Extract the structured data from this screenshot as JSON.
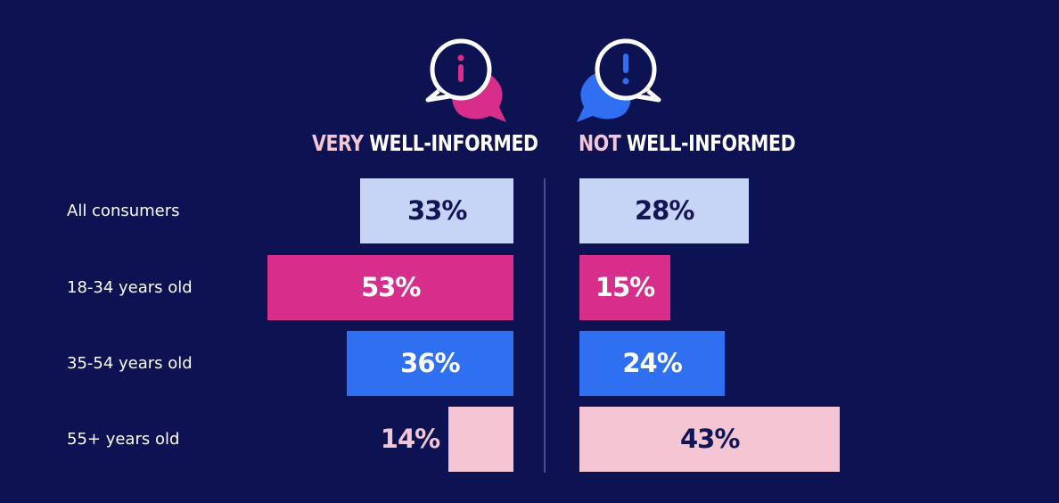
{
  "headers": {
    "left": {
      "highlight": "VERY",
      "rest": "WELL-INFORMED",
      "highlight_color": "#f4c5d3",
      "rest_color": "#ffffff"
    },
    "right": {
      "highlight": "NOT",
      "rest": "WELL-INFORMED",
      "highlight_color": "#f4c5d3",
      "rest_color": "#ffffff"
    }
  },
  "icons": {
    "left": {
      "name": "info-speech-bubble-icon",
      "accent": "#d62e8a"
    },
    "right": {
      "name": "alert-speech-bubble-icon",
      "accent": "#2f70f2"
    }
  },
  "colors": {
    "background": "#0d1252",
    "divider": "#4b4f86",
    "dark_text": "#111556",
    "light_text": "#ffffff"
  },
  "chart_data": {
    "type": "bar",
    "orientation": "horizontal-diverging",
    "categories": [
      "All consumers",
      "18-34 years old",
      "35-54 years old",
      "55+ years old"
    ],
    "series": [
      {
        "name": "VERY WELL-INFORMED",
        "values": [
          33,
          53,
          36,
          14
        ],
        "labels": [
          "33%",
          "53%",
          "36%",
          "14%"
        ]
      },
      {
        "name": "NOT WELL-INFORMED",
        "values": [
          28,
          15,
          24,
          43
        ],
        "labels": [
          "28%",
          "15%",
          "24%",
          "43%"
        ]
      }
    ],
    "row_colors": [
      "#c8d4f6",
      "#d62e8a",
      "#2f70f2",
      "#f4c5d3"
    ],
    "label_colors": [
      "#111556",
      "#ffffff",
      "#ffffff",
      "#111556"
    ],
    "outside_label_color": "#f4c5d3",
    "unit": "%"
  }
}
